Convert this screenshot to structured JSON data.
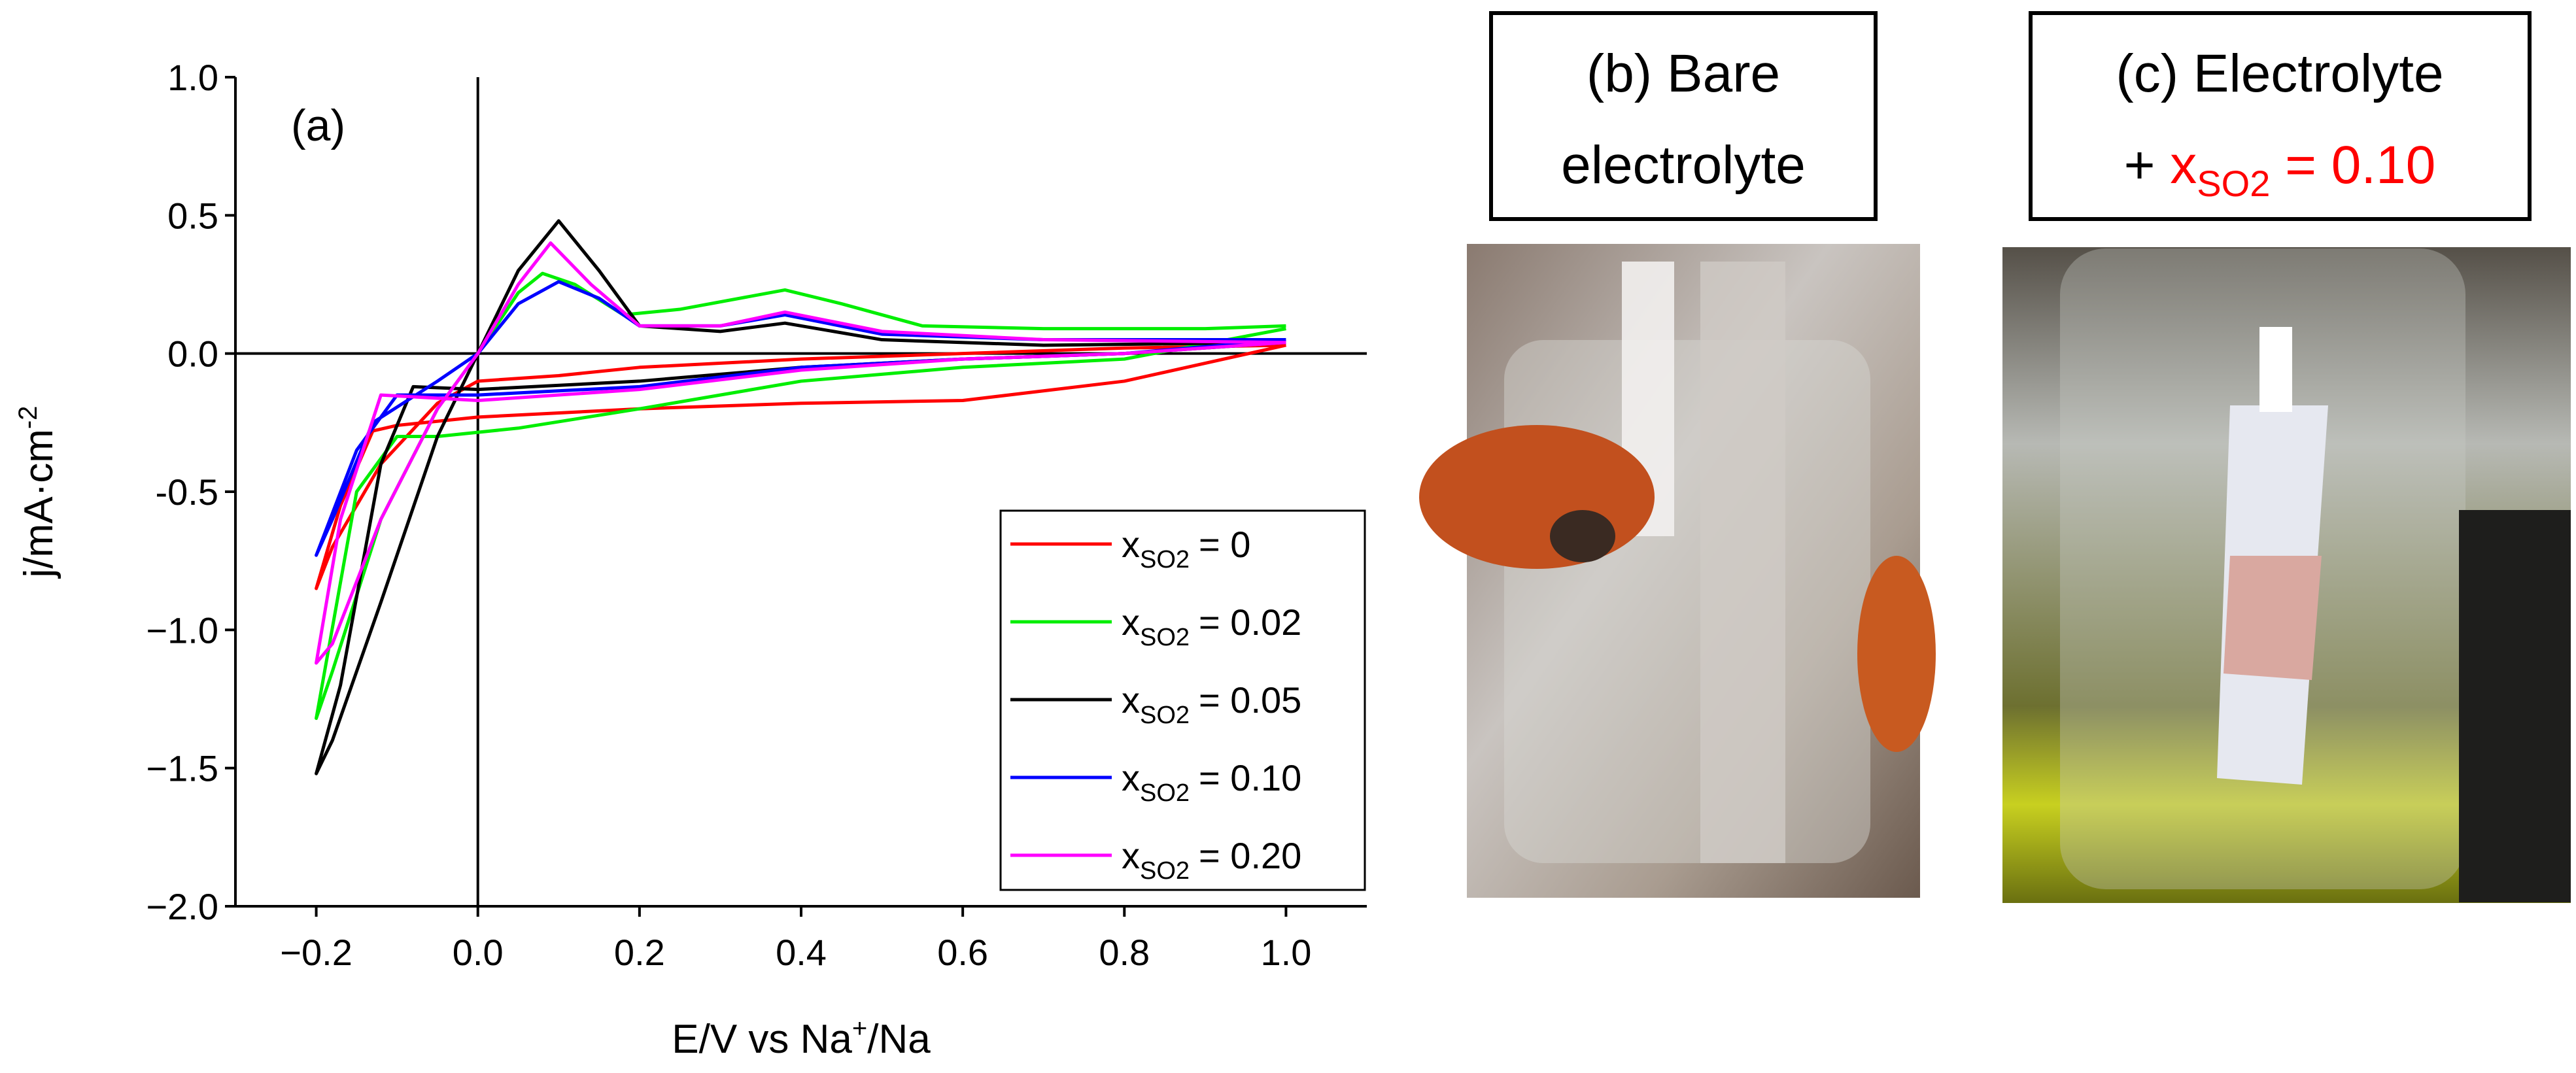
{
  "chart_data": {
    "type": "line",
    "panel_label": "(a)",
    "xlabel": "E/V vs Na",
    "xlabel_sup": "+",
    "xlabel_end": "/Na",
    "ylabel": "j/mA·cm",
    "ylabel_sup": "-2",
    "legend_var": "x",
    "legend_sub": "SO2",
    "xlim": [
      -0.3,
      1.1
    ],
    "xticks": [
      {
        "value": -0.2,
        "label": "−0.2"
      },
      {
        "value": 0,
        "label": "0.0"
      },
      0.2,
      0.4,
      0.6,
      0.8,
      {
        "value": 1,
        "label": "1.0"
      }
    ],
    "ylim": [
      -2,
      1
    ],
    "yticks": [
      {
        "value": 1,
        "label": "1.0"
      },
      0.5,
      {
        "value": 0,
        "label": "0.0"
      },
      -0.5,
      {
        "value": -1,
        "label": "−1.0"
      },
      {
        "value": -1.5,
        "label": "−1.5"
      },
      {
        "value": -2,
        "label": "−2.0"
      }
    ],
    "series": [
      {
        "name": "= 0",
        "color": "#ff0000",
        "x": [
          1.0,
          0.8,
          0.6,
          0.4,
          0.2,
          0.0,
          -0.1,
          -0.13,
          -0.17,
          -0.2,
          -0.18,
          -0.12,
          -0.05,
          0.0,
          0.1,
          0.2,
          0.4,
          0.6,
          0.8,
          1.0
        ],
        "values": [
          0.03,
          -0.1,
          -0.17,
          -0.18,
          -0.2,
          -0.23,
          -0.26,
          -0.28,
          -0.55,
          -0.85,
          -0.7,
          -0.4,
          -0.18,
          -0.1,
          -0.08,
          -0.05,
          -0.02,
          0.0,
          0.02,
          0.03
        ]
      },
      {
        "name": "= 0.02",
        "color": "#00ee00",
        "x": [
          1.0,
          0.8,
          0.6,
          0.4,
          0.2,
          0.05,
          -0.05,
          -0.1,
          -0.15,
          -0.2,
          -0.18,
          -0.12,
          -0.05,
          0.0,
          0.05,
          0.08,
          0.12,
          0.18,
          0.25,
          0.38,
          0.45,
          0.55,
          0.7,
          0.9,
          1.0
        ],
        "values": [
          0.09,
          -0.02,
          -0.05,
          -0.1,
          -0.2,
          -0.27,
          -0.3,
          -0.3,
          -0.5,
          -1.32,
          -1.15,
          -0.6,
          -0.2,
          0.0,
          0.22,
          0.29,
          0.25,
          0.14,
          0.16,
          0.23,
          0.18,
          0.1,
          0.09,
          0.09,
          0.1
        ]
      },
      {
        "name": "= 0.05",
        "color": "#000000",
        "x": [
          1.0,
          0.8,
          0.6,
          0.4,
          0.2,
          0.0,
          -0.08,
          -0.12,
          -0.17,
          -0.2,
          -0.18,
          -0.12,
          -0.05,
          0.0,
          0.05,
          0.1,
          0.15,
          0.2,
          0.3,
          0.38,
          0.5,
          0.7,
          1.0
        ],
        "values": [
          0.04,
          0.0,
          -0.02,
          -0.05,
          -0.1,
          -0.13,
          -0.12,
          -0.4,
          -1.2,
          -1.52,
          -1.4,
          -0.9,
          -0.3,
          0.0,
          0.3,
          0.48,
          0.3,
          0.1,
          0.08,
          0.11,
          0.05,
          0.03,
          0.04
        ]
      },
      {
        "name": "= 0.10",
        "color": "#0000ff",
        "x": [
          1.0,
          0.8,
          0.6,
          0.4,
          0.2,
          0.0,
          -0.1,
          -0.15,
          -0.2,
          -0.18,
          -0.13,
          -0.05,
          0.0,
          0.05,
          0.1,
          0.15,
          0.2,
          0.3,
          0.38,
          0.5,
          0.7,
          1.0
        ],
        "values": [
          0.05,
          0.0,
          -0.02,
          -0.05,
          -0.12,
          -0.15,
          -0.15,
          -0.35,
          -0.73,
          -0.6,
          -0.25,
          -0.1,
          0.0,
          0.18,
          0.26,
          0.2,
          0.1,
          0.1,
          0.14,
          0.07,
          0.05,
          0.05
        ]
      },
      {
        "name": "= 0.20",
        "color": "#ff00ff",
        "x": [
          1.0,
          0.8,
          0.6,
          0.4,
          0.2,
          0.0,
          -0.12,
          -0.17,
          -0.2,
          -0.18,
          -0.12,
          -0.05,
          0.0,
          0.05,
          0.09,
          0.14,
          0.2,
          0.3,
          0.38,
          0.5,
          0.7,
          1.0
        ],
        "values": [
          0.04,
          0.0,
          -0.02,
          -0.06,
          -0.13,
          -0.17,
          -0.15,
          -0.6,
          -1.12,
          -1.05,
          -0.6,
          -0.2,
          0.0,
          0.25,
          0.4,
          0.25,
          0.1,
          0.1,
          0.15,
          0.08,
          0.05,
          0.04
        ]
      }
    ]
  },
  "photos": {
    "b": {
      "line1": "(b) Bare",
      "line2": "electrolyte"
    },
    "c": {
      "line1": "(c) Electrolyte",
      "plus": "+ ",
      "var": "x",
      "sub": "SO2",
      "rest": " = 0.10",
      "highlight_color": "#ff0000"
    }
  }
}
